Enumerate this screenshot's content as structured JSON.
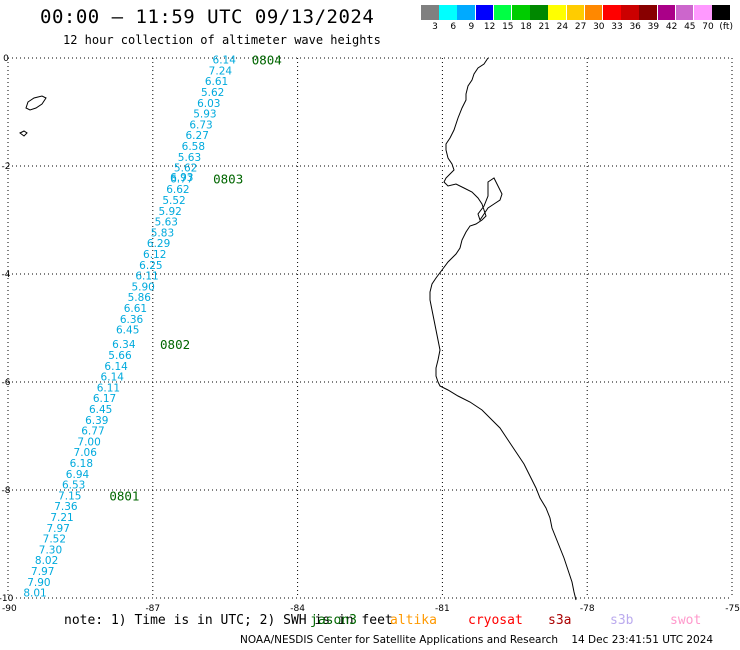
{
  "header": {
    "title": "00:00 – 11:59 UTC 09/13/2024",
    "subtitle": "12 hour collection of altimeter wave heights"
  },
  "colorbar": {
    "colors": [
      "#808080",
      "#00ffff",
      "#00aaff",
      "#0000ff",
      "#00ff44",
      "#00cc00",
      "#008800",
      "#ffff00",
      "#ffcc00",
      "#ff8800",
      "#ff0000",
      "#cc0000",
      "#880000",
      "#aa0088",
      "#cc66cc",
      "#ff99ff",
      "#000000"
    ],
    "labels": [
      "3",
      "6",
      "9",
      "12",
      "15",
      "18",
      "21",
      "24",
      "27",
      "30",
      "33",
      "36",
      "39",
      "42",
      "45",
      "70",
      "(ft)"
    ]
  },
  "map": {
    "lon_ticks": [
      "-90",
      "-87",
      "-84",
      "-81",
      "-78",
      "-75"
    ],
    "lat_ticks": [
      "0",
      "-2",
      "-4",
      "-6",
      "-8",
      "-10"
    ],
    "lon_range": [
      -90,
      -75
    ],
    "lat_range": [
      -10,
      0
    ],
    "track_color": "#00aadd",
    "time_label_color": "#006600",
    "track": [
      {
        "lon": -85.52,
        "lat": -0.03,
        "swh": "6.14"
      },
      {
        "lon": -85.6,
        "lat": -0.23,
        "swh": "7.24"
      },
      {
        "lon": -85.68,
        "lat": -0.43,
        "swh": "6.61"
      },
      {
        "lon": -85.76,
        "lat": -0.63,
        "swh": "5.62"
      },
      {
        "lon": -85.84,
        "lat": -0.83,
        "swh": "6.03"
      },
      {
        "lon": -85.92,
        "lat": -1.03,
        "swh": "5.93"
      },
      {
        "lon": -86.0,
        "lat": -1.23,
        "swh": "6.73"
      },
      {
        "lon": -86.08,
        "lat": -1.43,
        "swh": "6.27"
      },
      {
        "lon": -86.16,
        "lat": -1.63,
        "swh": "6.58"
      },
      {
        "lon": -86.24,
        "lat": -1.83,
        "swh": "5.63"
      },
      {
        "lon": -86.32,
        "lat": -2.03,
        "swh": "5.62"
      },
      {
        "lon": -86.4,
        "lat": -2.2,
        "swh": "6.93"
      },
      {
        "lon": -86.4,
        "lat": -2.23,
        "swh": "6.77"
      },
      {
        "lon": -86.48,
        "lat": -2.43,
        "swh": "6.62"
      },
      {
        "lon": -86.56,
        "lat": -2.63,
        "swh": "5.52"
      },
      {
        "lon": -86.64,
        "lat": -2.83,
        "swh": "5.92"
      },
      {
        "lon": -86.72,
        "lat": -3.03,
        "swh": "5.63"
      },
      {
        "lon": -86.8,
        "lat": -3.23,
        "swh": "5.83"
      },
      {
        "lon": -86.88,
        "lat": -3.43,
        "swh": "6.29"
      },
      {
        "lon": -86.96,
        "lat": -3.63,
        "swh": "6.12"
      },
      {
        "lon": -87.04,
        "lat": -3.83,
        "swh": "6.25"
      },
      {
        "lon": -87.12,
        "lat": -4.03,
        "swh": "6.11"
      },
      {
        "lon": -87.2,
        "lat": -4.23,
        "swh": "5.90"
      },
      {
        "lon": -87.28,
        "lat": -4.43,
        "swh": "5.86"
      },
      {
        "lon": -87.36,
        "lat": -4.63,
        "swh": "6.61"
      },
      {
        "lon": -87.44,
        "lat": -4.83,
        "swh": "6.36"
      },
      {
        "lon": -87.52,
        "lat": -5.03,
        "swh": "6.45"
      },
      {
        "lon": -87.6,
        "lat": -5.3,
        "swh": "6.34"
      },
      {
        "lon": -87.68,
        "lat": -5.5,
        "swh": "5.66"
      },
      {
        "lon": -87.76,
        "lat": -5.7,
        "swh": "6.14"
      },
      {
        "lon": -87.84,
        "lat": -5.9,
        "swh": "6.14"
      },
      {
        "lon": -87.92,
        "lat": -6.1,
        "swh": "6.11"
      },
      {
        "lon": -88.0,
        "lat": -6.3,
        "swh": "6.17"
      },
      {
        "lon": -88.08,
        "lat": -6.5,
        "swh": "6.45"
      },
      {
        "lon": -88.16,
        "lat": -6.7,
        "swh": "6.39"
      },
      {
        "lon": -88.24,
        "lat": -6.9,
        "swh": "6.77"
      },
      {
        "lon": -88.32,
        "lat": -7.1,
        "swh": "7.00"
      },
      {
        "lon": -88.4,
        "lat": -7.3,
        "swh": "7.06"
      },
      {
        "lon": -88.48,
        "lat": -7.5,
        "swh": "6.18"
      },
      {
        "lon": -88.56,
        "lat": -7.7,
        "swh": "6.94"
      },
      {
        "lon": -88.64,
        "lat": -7.9,
        "swh": "6.53"
      },
      {
        "lon": -88.72,
        "lat": -8.1,
        "swh": "7.15"
      },
      {
        "lon": -88.8,
        "lat": -8.3,
        "swh": "7.36"
      },
      {
        "lon": -88.88,
        "lat": -8.5,
        "swh": "7.21"
      },
      {
        "lon": -88.96,
        "lat": -8.7,
        "swh": "7.97"
      },
      {
        "lon": -89.04,
        "lat": -8.9,
        "swh": "7.52"
      },
      {
        "lon": -89.12,
        "lat": -9.1,
        "swh": "7.30"
      },
      {
        "lon": -89.2,
        "lat": -9.3,
        "swh": "8.02"
      },
      {
        "lon": -89.28,
        "lat": -9.5,
        "swh": "7.97"
      },
      {
        "lon": -89.36,
        "lat": -9.7,
        "swh": "7.90"
      },
      {
        "lon": -89.44,
        "lat": -9.9,
        "swh": "8.01"
      }
    ],
    "time_labels": [
      {
        "lon": -84.95,
        "lat": -0.03,
        "text": "0804"
      },
      {
        "lon": -85.75,
        "lat": -2.23,
        "text": "0803"
      },
      {
        "lon": -86.85,
        "lat": -5.3,
        "text": "0802"
      },
      {
        "lon": -87.9,
        "lat": -8.1,
        "text": "0801"
      }
    ]
  },
  "footer": {
    "note": "note: 1) Time is in UTC; 2) SWH is in feet",
    "satellites": [
      {
        "name": "jason3",
        "color": "#006600"
      },
      {
        "name": "altika",
        "color": "#ff9900"
      },
      {
        "name": "cryosat",
        "color": "#ff0000"
      },
      {
        "name": "s3a",
        "color": "#aa0000"
      },
      {
        "name": "s3b",
        "color": "#bbaaee"
      },
      {
        "name": "swot",
        "color": "#ff99cc"
      }
    ],
    "credit": "NOAA/NESDIS Center for Satellite Applications and Research",
    "timestamp": "14 Dec 23:41:51 UTC 2024"
  }
}
